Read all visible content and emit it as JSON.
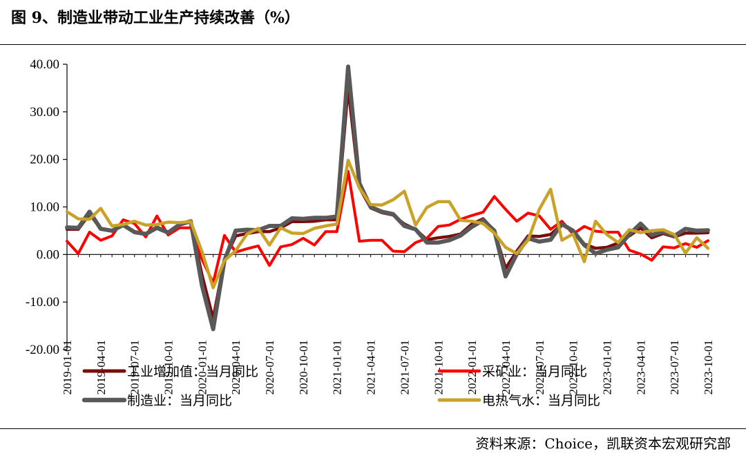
{
  "title": "图 9、制造业带动工业生产持续改善（%）",
  "source": "资料来源：Choice，凯联资本宏观研究部",
  "chart_data": {
    "type": "line",
    "ylim": [
      -20,
      40
    ],
    "y_ticks": [
      "40.00",
      "30.00",
      "20.00",
      "10.00",
      "0.00",
      "-10.00",
      "-20.00"
    ],
    "y_tick_values": [
      40,
      30,
      20,
      10,
      0,
      -10,
      -20
    ],
    "x": [
      "2019-01-01",
      "2019-02-01",
      "2019-03-01",
      "2019-04-01",
      "2019-05-01",
      "2019-06-01",
      "2019-07-01",
      "2019-08-01",
      "2019-09-01",
      "2019-10-01",
      "2019-11-01",
      "2019-12-01",
      "2020-01-01",
      "2020-02-01",
      "2020-03-01",
      "2020-04-01",
      "2020-05-01",
      "2020-06-01",
      "2020-07-01",
      "2020-08-01",
      "2020-09-01",
      "2020-10-01",
      "2020-11-01",
      "2020-12-01",
      "2021-01-01",
      "2021-02-01",
      "2021-03-01",
      "2021-04-01",
      "2021-05-01",
      "2021-06-01",
      "2021-07-01",
      "2021-08-01",
      "2021-09-01",
      "2021-10-01",
      "2021-11-01",
      "2021-12-01",
      "2022-01-01",
      "2022-02-01",
      "2022-03-01",
      "2022-04-01",
      "2022-05-01",
      "2022-06-01",
      "2022-07-01",
      "2022-08-01",
      "2022-09-01",
      "2022-10-01",
      "2022-11-01",
      "2022-12-01",
      "2023-01-01",
      "2023-02-01",
      "2023-03-01",
      "2023-04-01",
      "2023-05-01",
      "2023-06-01",
      "2023-07-01",
      "2023-08-01",
      "2023-09-01",
      "2023-10-01"
    ],
    "x_tick_labels": [
      "2019-01-01",
      "2019-04-01",
      "2019-07-01",
      "2019-10-01",
      "2020-01-01",
      "2020-04-01",
      "2020-07-01",
      "2020-10-01",
      "2021-01-01",
      "2021-04-01",
      "2021-07-01",
      "2021-10-01",
      "2022-01-01",
      "2022-04-01",
      "2022-07-01",
      "2022-10-01",
      "2023-01-01",
      "2023-04-01",
      "2023-07-01",
      "2023-10-01"
    ],
    "series": [
      {
        "name": "工业增加值：当月同比",
        "color": "#7b0c0c",
        "width": 4.5,
        "values": [
          5.3,
          5.3,
          8.5,
          5.4,
          5.0,
          6.3,
          4.8,
          4.4,
          5.8,
          4.7,
          6.2,
          6.9,
          -4.3,
          -13.5,
          -1.1,
          3.9,
          4.4,
          4.8,
          4.8,
          5.6,
          6.9,
          6.9,
          7.0,
          7.3,
          7.3,
          35.1,
          14.1,
          9.8,
          8.8,
          8.3,
          6.4,
          5.3,
          3.1,
          3.5,
          3.8,
          4.3,
          6.4,
          7.5,
          5.0,
          -2.9,
          0.7,
          3.9,
          3.8,
          4.2,
          6.3,
          5.0,
          2.2,
          1.3,
          1.5,
          2.4,
          3.9,
          5.6,
          3.5,
          4.4,
          3.7,
          4.5,
          4.5,
          4.6
        ]
      },
      {
        "name": "采矿业：当月同比",
        "color": "#ff0000",
        "width": 4,
        "values": [
          2.8,
          0.2,
          4.7,
          3.0,
          3.9,
          7.3,
          6.5,
          3.7,
          8.1,
          4.1,
          5.6,
          5.6,
          -1.0,
          -6.0,
          4.0,
          0.5,
          1.2,
          1.8,
          -2.3,
          1.6,
          2.1,
          3.4,
          2.0,
          4.8,
          4.8,
          17.5,
          2.8,
          3.0,
          3.0,
          0.7,
          0.6,
          2.5,
          3.4,
          5.9,
          6.2,
          7.4,
          8.2,
          8.9,
          12.2,
          9.5,
          7.0,
          8.7,
          8.1,
          5.3,
          7.0,
          4.3,
          5.9,
          4.9,
          4.7,
          4.7,
          0.9,
          0.1,
          -1.2,
          1.6,
          1.4,
          2.3,
          1.5,
          2.9
        ]
      },
      {
        "name": "制造业：当月同比",
        "color": "#595959",
        "width": 6,
        "values": [
          5.7,
          5.6,
          9.0,
          5.4,
          5.0,
          6.2,
          4.7,
          4.3,
          5.6,
          4.6,
          6.3,
          7.0,
          -6.5,
          -15.7,
          -1.3,
          5.0,
          5.2,
          5.1,
          6.0,
          6.0,
          7.6,
          7.5,
          7.7,
          7.7,
          8.0,
          39.5,
          15.0,
          10.0,
          9.0,
          8.5,
          6.0,
          5.3,
          2.5,
          2.5,
          3.0,
          4.0,
          5.8,
          7.2,
          5.0,
          -4.6,
          0.1,
          3.4,
          2.7,
          3.1,
          6.4,
          5.0,
          2.0,
          0.2,
          1.0,
          1.5,
          4.2,
          6.5,
          4.1,
          4.8,
          3.9,
          5.4,
          5.0,
          5.1
        ]
      },
      {
        "name": "电热气水：当月同比",
        "color": "#c9a227",
        "width": 4.5,
        "values": [
          9.0,
          7.5,
          7.4,
          9.7,
          6.0,
          6.3,
          7.0,
          6.2,
          6.3,
          6.8,
          6.7,
          6.9,
          0.6,
          -7.0,
          -1.3,
          0.8,
          4.3,
          5.5,
          2.0,
          5.6,
          4.5,
          4.4,
          5.5,
          6.0,
          6.4,
          19.8,
          14.0,
          10.5,
          10.4,
          11.5,
          13.3,
          6.2,
          9.9,
          11.1,
          11.1,
          7.2,
          7.0,
          6.5,
          4.5,
          1.5,
          0.2,
          3.0,
          9.5,
          13.7,
          3.0,
          4.3,
          -1.5,
          7.0,
          4.2,
          2.5,
          5.2,
          4.6,
          5.0,
          5.2,
          4.2,
          0.3,
          3.5,
          1.3
        ]
      }
    ],
    "legend_layout": "bottom-two-columns"
  }
}
